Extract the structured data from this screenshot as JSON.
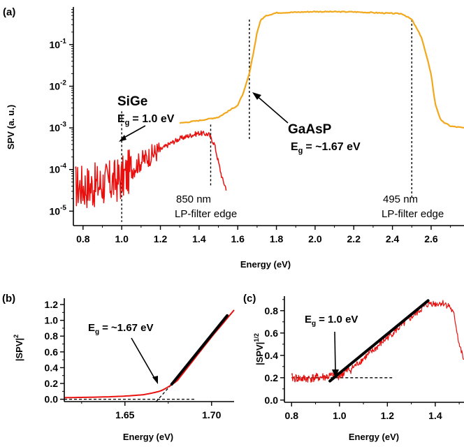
{
  "chart_data": [
    {
      "panel": "(a)",
      "type": "line",
      "xlabel": "Energy (eV)",
      "ylabel": "SPV (a. u.)",
      "xlim": [
        0.75,
        2.77
      ],
      "ylim": [
        4.5e-06,
        0.8
      ],
      "yscale": "log",
      "xticks": [
        "0.8",
        "1.0",
        "1.2",
        "1.4",
        "1.6",
        "1.8",
        "2.0",
        "2.2",
        "2.4",
        "2.6"
      ],
      "yticks": [
        {
          "base": "10",
          "exp": "-5",
          "value": 1e-05
        },
        {
          "base": "10",
          "exp": "-4",
          "value": 0.0001
        },
        {
          "base": "10",
          "exp": "-3",
          "value": 0.001
        },
        {
          "base": "10",
          "exp": "-2",
          "value": 0.01
        },
        {
          "base": "10",
          "exp": "-1",
          "value": 0.1
        }
      ],
      "series": [
        {
          "color": "#e8110f",
          "x": [
            0.76,
            0.8,
            0.85,
            0.9,
            0.95,
            1.0,
            1.05,
            1.1,
            1.15,
            1.2,
            1.25,
            1.3,
            1.35,
            1.4,
            1.45,
            1.48,
            1.5,
            1.52,
            1.54
          ],
          "y": [
            4e-05,
            4e-05,
            4e-05,
            4.5e-05,
            5e-05,
            6e-05,
            0.0001,
            0.00016,
            0.00022,
            0.0003,
            0.00042,
            0.00055,
            0.00065,
            0.00075,
            0.0007,
            0.0004,
            0.00015,
            6e-05,
            3.5e-05
          ]
        },
        {
          "color": "#f2a81d",
          "x": [
            1.3,
            1.4,
            1.5,
            1.55,
            1.6,
            1.63,
            1.66,
            1.68,
            1.7,
            1.72,
            1.75,
            1.8,
            1.9,
            2.0,
            2.2,
            2.4,
            2.45,
            2.5,
            2.55,
            2.6,
            2.62,
            2.65,
            2.7,
            2.77
          ],
          "y": [
            0.0013,
            0.0015,
            0.0018,
            0.0025,
            0.0035,
            0.007,
            0.02,
            0.06,
            0.2,
            0.4,
            0.5,
            0.58,
            0.6,
            0.62,
            0.61,
            0.56,
            0.55,
            0.4,
            0.15,
            0.02,
            0.004,
            0.0015,
            0.0011,
            0.001
          ]
        }
      ],
      "vlines": [
        1.0,
        1.46,
        1.66,
        2.5
      ],
      "annotations": {
        "sige_name": "SiGe",
        "sige_eg": "= 1.0 eV",
        "gaasp_name": "GaAsP",
        "gaasp_eg": "= ~1.67 eV",
        "filter1_nm": "850 nm",
        "filter1_text": "LP-filter edge",
        "filter2_nm": "495 nm",
        "filter2_text": "LP-filter edge",
        "eg_symbol": "E",
        "eg_sub": "g"
      }
    },
    {
      "panel": "(b)",
      "type": "line",
      "xlabel": "Energy (eV)",
      "ylabel_main": "|SPV|",
      "ylabel_sup": "2",
      "xlim": [
        1.615,
        1.713
      ],
      "ylim": [
        -0.03,
        1.28
      ],
      "xticks": [
        "1.65",
        "1.70"
      ],
      "yticks": [
        "0.0",
        "0.2",
        "0.4",
        "0.6",
        "0.8",
        "1.0",
        "1.2"
      ],
      "series": [
        {
          "color": "#e8110f",
          "x": [
            1.615,
            1.63,
            1.64,
            1.65,
            1.66,
            1.665,
            1.67,
            1.673,
            1.676,
            1.68,
            1.69,
            1.7,
            1.713
          ],
          "y": [
            0.02,
            0.025,
            0.03,
            0.04,
            0.055,
            0.075,
            0.1,
            0.13,
            0.17,
            0.23,
            0.51,
            0.79,
            1.13
          ]
        }
      ],
      "fit": {
        "x": [
          1.677,
          1.709
        ],
        "y": [
          0.19,
          1.06
        ]
      },
      "fit_dash": {
        "x": [
          1.668,
          1.677
        ],
        "y": [
          -0.03,
          0.19
        ]
      },
      "baseline": {
        "x": [
          1.615,
          1.69
        ],
        "y": [
          0.0,
          0.0
        ]
      },
      "annotation": {
        "eg_symbol": "E",
        "eg_sub": "g",
        "eg_value": "= ~1.67 eV"
      }
    },
    {
      "panel": "(c)",
      "type": "line",
      "xlabel": "Energy (eV)",
      "ylabel_main": "|SPV|",
      "ylabel_sup": "1/2",
      "xlim": [
        0.77,
        1.52
      ],
      "ylim": [
        -0.02,
        0.93
      ],
      "xticks": [
        "0.8",
        "1.0",
        "1.2",
        "1.4"
      ],
      "yticks": [
        "0.0",
        "0.2",
        "0.4",
        "0.6",
        "0.8"
      ],
      "series": [
        {
          "color": "#e8110f",
          "x": [
            0.8,
            0.85,
            0.9,
            0.95,
            1.0,
            1.05,
            1.1,
            1.15,
            1.2,
            1.25,
            1.3,
            1.35,
            1.38,
            1.4,
            1.43,
            1.46,
            1.48,
            1.5,
            1.52
          ],
          "y": [
            0.2,
            0.19,
            0.2,
            0.21,
            0.22,
            0.28,
            0.37,
            0.46,
            0.56,
            0.65,
            0.74,
            0.83,
            0.87,
            0.86,
            0.87,
            0.84,
            0.75,
            0.5,
            0.35
          ]
        }
      ],
      "fit": {
        "x": [
          0.96,
          1.37
        ],
        "y": [
          0.17,
          0.89
        ]
      },
      "baseline": {
        "x": [
          0.8,
          1.22
        ],
        "y": [
          0.2,
          0.2
        ]
      },
      "annotation": {
        "eg_symbol": "E",
        "eg_sub": "g",
        "eg_value": "= 1.0 eV"
      }
    }
  ]
}
